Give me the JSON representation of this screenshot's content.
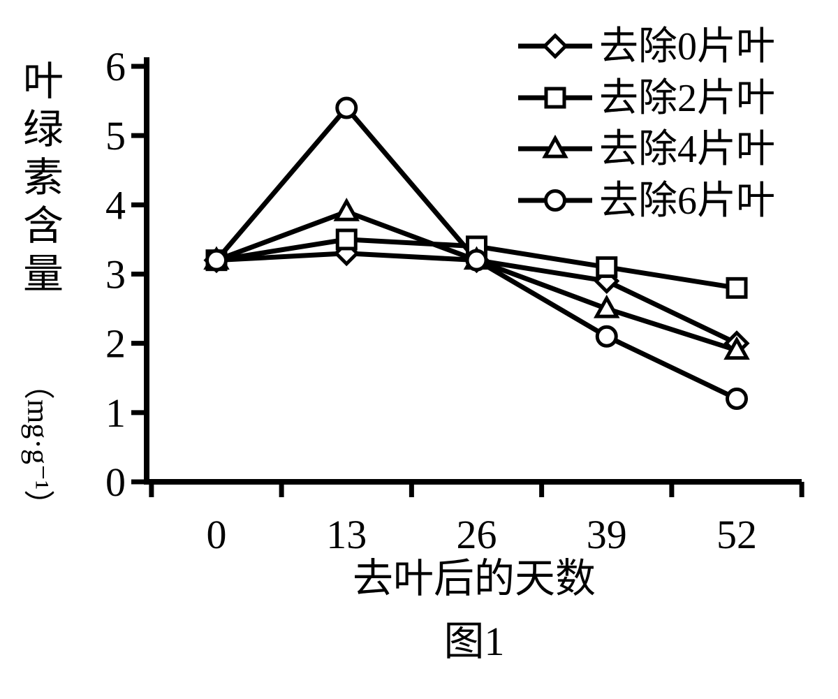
{
  "figure": {
    "caption": "图1"
  },
  "chart_data": {
    "type": "line",
    "title": "图1",
    "xlabel": "去叶后的天数",
    "ylabel": "叶绿素含量",
    "ylabel_unit": "（mg·g⁻¹）",
    "x": [
      0,
      13,
      26,
      39,
      52
    ],
    "ylim": [
      0,
      6
    ],
    "yticks": [
      0,
      1,
      2,
      3,
      4,
      5,
      6
    ],
    "grid": false,
    "legend_position": "top-right",
    "line_color": "#000000",
    "marker_fill": "#ffffff",
    "background_color": "#ffffff",
    "series": [
      {
        "name": "去除0片叶",
        "marker": "diamond",
        "values": [
          3.2,
          3.3,
          3.2,
          2.9,
          2.0
        ]
      },
      {
        "name": "去除2片叶",
        "marker": "square",
        "values": [
          3.2,
          3.5,
          3.4,
          3.1,
          2.8
        ]
      },
      {
        "name": "去除4片叶",
        "marker": "triangle",
        "values": [
          3.2,
          3.9,
          3.2,
          2.5,
          1.9
        ]
      },
      {
        "name": "去除6片叶",
        "marker": "circle",
        "values": [
          3.2,
          5.4,
          3.2,
          2.1,
          1.2
        ]
      }
    ]
  }
}
